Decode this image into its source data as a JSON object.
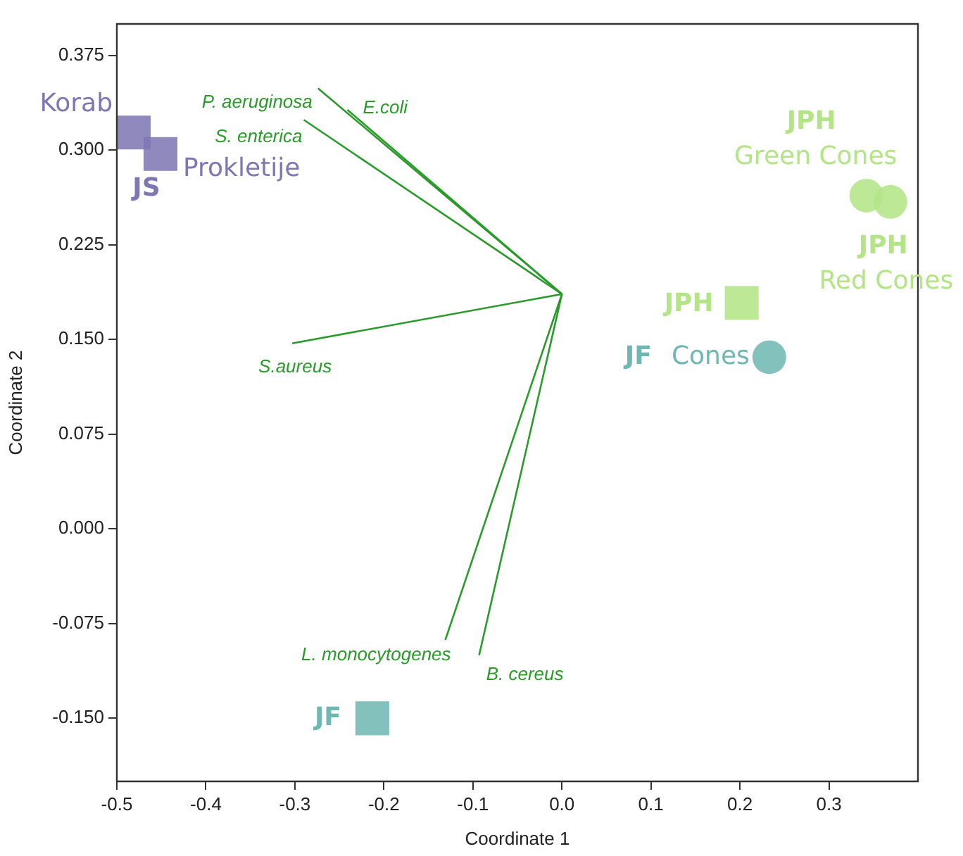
{
  "chart_data": {
    "type": "scatter",
    "xlabel": "Coordinate 1",
    "ylabel": "Coordinate 2",
    "xlim": [
      -0.5,
      0.4
    ],
    "ylim": [
      -0.2,
      0.4
    ],
    "xticks": [
      {
        "value": -0.5,
        "label": "-0.5"
      },
      {
        "value": -0.4,
        "label": "-0.4"
      },
      {
        "value": -0.3,
        "label": "-0.3"
      },
      {
        "value": -0.2,
        "label": "-0.2"
      },
      {
        "value": -0.1,
        "label": "-0.1"
      },
      {
        "value": 0,
        "label": "0.0"
      },
      {
        "value": 0.1,
        "label": "0.1"
      },
      {
        "value": 0.2,
        "label": "0.2"
      },
      {
        "value": 0.3,
        "label": "0.3"
      }
    ],
    "yticks": [
      {
        "value": -0.15,
        "label": "-0.150"
      },
      {
        "value": -0.075,
        "label": "-0.075"
      },
      {
        "value": 0,
        "label": "0.000"
      },
      {
        "value": 0.075,
        "label": "0.075"
      },
      {
        "value": 0.15,
        "label": "0.150"
      },
      {
        "value": 0.225,
        "label": "0.225"
      },
      {
        "value": 0.3,
        "label": "0.300"
      },
      {
        "value": 0.375,
        "label": "0.375"
      }
    ],
    "grid": false,
    "legend": false,
    "series": [
      {
        "name": "Korab",
        "type": "scatter",
        "marker": "square",
        "color": "#7f77b4",
        "x": [
          -0.481
        ],
        "values": [
          0.314
        ]
      },
      {
        "name": "Prokletije",
        "type": "scatter",
        "marker": "square",
        "color": "#7f77b4",
        "x": [
          -0.451
        ],
        "values": [
          0.297
        ]
      },
      {
        "type": "scatter",
        "marker": "square",
        "color": "#b3e486",
        "x": [
          0.202
        ],
        "values": [
          0.179
        ]
      },
      {
        "name": "Cones",
        "type": "scatter",
        "marker": "circle",
        "color": "#6fb8b2",
        "x": [
          0.233
        ],
        "values": [
          0.136
        ]
      },
      {
        "name": "Green Cones",
        "type": "scatter",
        "marker": "circle",
        "color": "#b3e486",
        "x": [
          0.342
        ],
        "values": [
          0.264
        ]
      },
      {
        "name": "Red Cones",
        "type": "scatter",
        "marker": "circle",
        "color": "#b3e486",
        "x": [
          0.369
        ],
        "values": [
          0.259
        ]
      },
      {
        "type": "scatter",
        "marker": "square",
        "color": "#6fb8b2",
        "x": [
          -0.213
        ],
        "values": [
          -0.15
        ]
      },
      {
        "name": "P. aeruginosa",
        "type": "line",
        "marker": "none",
        "color": "#2a9a2a",
        "x": [
          0,
          -0.274
        ],
        "values": [
          0.186,
          0.349
        ]
      },
      {
        "name": "E.coli",
        "type": "line",
        "marker": "none",
        "color": "#2a9a2a",
        "x": [
          0,
          -0.241
        ],
        "values": [
          0.186,
          0.332
        ]
      },
      {
        "name": "S. enterica",
        "type": "line",
        "marker": "none",
        "color": "#2a9a2a",
        "x": [
          0,
          -0.29
        ],
        "values": [
          0.186,
          0.324
        ]
      },
      {
        "name": "S.aureus",
        "type": "line",
        "marker": "none",
        "color": "#2a9a2a",
        "x": [
          0,
          -0.303
        ],
        "values": [
          0.186,
          0.147
        ]
      },
      {
        "name": "L. monocytogenes",
        "type": "line",
        "marker": "none",
        "color": "#2a9a2a",
        "x": [
          0,
          -0.131
        ],
        "values": [
          0.186,
          -0.088
        ]
      },
      {
        "name": "B. cereus",
        "type": "line",
        "marker": "none",
        "color": "#2a9a2a",
        "x": [
          0,
          -0.093
        ],
        "values": [
          0.186,
          -0.1
        ]
      }
    ],
    "annotations": [
      "JS",
      "JPH",
      "JPH",
      "JPH",
      "JF",
      "JF"
    ]
  }
}
